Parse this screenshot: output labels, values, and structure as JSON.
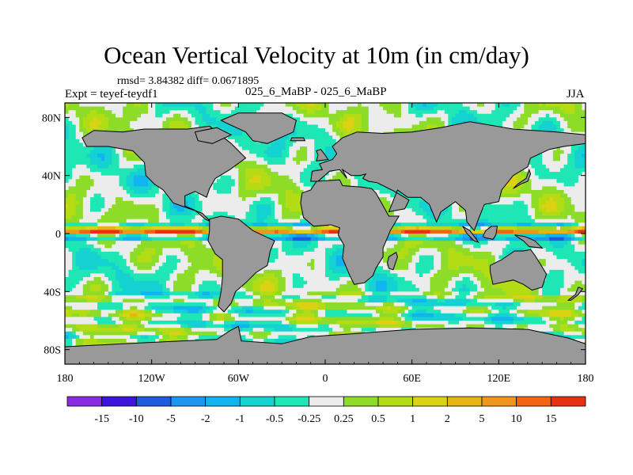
{
  "title": "Ocean Vertical Velocity at 10m (in cm/day)",
  "stats": "rmsd= 3.84382 diff= 0.0671895",
  "left_label": "Expt = teyef-teydf1",
  "center_label": "025_6_MaBP - 025_6_MaBP",
  "right_label": "JJA",
  "colors": {
    "land": "#999999",
    "ocean_bg": "#eeeeee",
    "palette": [
      "#8a2be2",
      "#3c14dc",
      "#1e5adc",
      "#1e96f0",
      "#12b4f0",
      "#14d2d2",
      "#1ee6b4",
      "#ececec",
      "#8cdc28",
      "#b4dc14",
      "#dcd214",
      "#e6b414",
      "#f0961e",
      "#f06414",
      "#e63212"
    ]
  },
  "chart_data": {
    "type": "heatmap",
    "title": "Ocean Vertical Velocity at 10m (in cm/day)",
    "units": "cm/day",
    "x_ticks": [
      "180",
      "120W",
      "60W",
      "0",
      "60E",
      "120E",
      "180"
    ],
    "y_ticks": [
      "80N",
      "40N",
      "0",
      "40S",
      "80S"
    ],
    "colorbar_labels": [
      "-15",
      "-10",
      "-5",
      "-2",
      "-1",
      "-0.5",
      "-0.25",
      "0.25",
      "0.5",
      "1",
      "2",
      "5",
      "10",
      "15"
    ],
    "lon_range": [
      -180,
      180
    ],
    "lat_range": [
      -90,
      90
    ]
  }
}
